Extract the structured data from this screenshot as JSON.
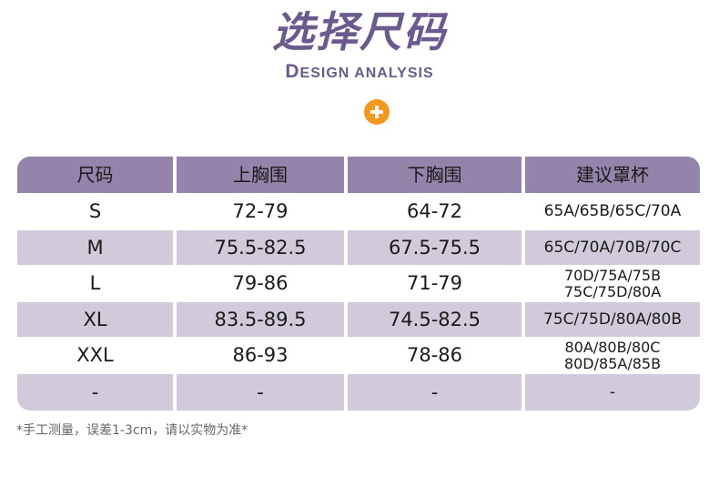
{
  "header": {
    "title": "选择尺码",
    "subtitle_initial": "D",
    "subtitle_rest": "ESIGN ANALYSIS",
    "badge_icon": "plus-circle-icon",
    "title_color": "#6a5a8e",
    "badge_color": "#f39a1e"
  },
  "table": {
    "header_color": "#9484ab",
    "shade_color": "#d0cadb",
    "columns": [
      "尺码",
      "上胸围",
      "下胸围",
      "建议罩杯"
    ],
    "rows": [
      {
        "size": "S",
        "upper": "72-79",
        "lower": "64-72",
        "cup": [
          "65A/65B/65C/70A"
        ]
      },
      {
        "size": "M",
        "upper": "75.5-82.5",
        "lower": "67.5-75.5",
        "cup": [
          "65C/70A/70B/70C"
        ]
      },
      {
        "size": "L",
        "upper": "79-86",
        "lower": "71-79",
        "cup": [
          "70D/75A/75B",
          "75C/75D/80A"
        ]
      },
      {
        "size": "XL",
        "upper": "83.5-89.5",
        "lower": "74.5-82.5",
        "cup": [
          "75C/75D/80A/80B"
        ]
      },
      {
        "size": "XXL",
        "upper": "86-93",
        "lower": "78-86",
        "cup": [
          "80A/80B/80C",
          "80D/85A/85B"
        ]
      },
      {
        "size": "-",
        "upper": "-",
        "lower": "-",
        "cup": [
          "-"
        ]
      }
    ]
  },
  "footer": {
    "note": "*手工测量，误差1-3cm，请以实物为准*"
  }
}
